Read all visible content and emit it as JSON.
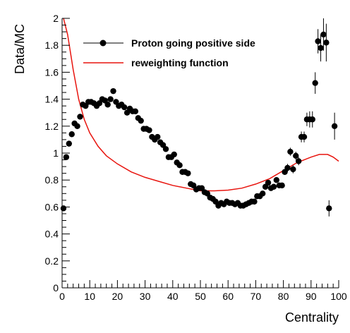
{
  "chart_data": {
    "type": "scatter",
    "title": "",
    "xlabel": "Centrality",
    "ylabel": "Data/MC",
    "xlim": [
      0,
      100
    ],
    "ylim": [
      0,
      2
    ],
    "xticks": [
      0,
      10,
      20,
      30,
      40,
      50,
      60,
      70,
      80,
      90,
      100
    ],
    "yticks": [
      0,
      0.2,
      0.4,
      0.6,
      0.8,
      1,
      1.2,
      1.4,
      1.6,
      1.8,
      2
    ],
    "xtick_labels": [
      "0",
      "10",
      "20",
      "30",
      "40",
      "50",
      "60",
      "70",
      "80",
      "90",
      "100"
    ],
    "ytick_labels": [
      "0",
      "0.2",
      "0.4",
      "0.6",
      "0.8",
      "1",
      "1.2",
      "1.4",
      "1.6",
      "1.8",
      "2"
    ],
    "grid": false,
    "legend_position": "top-left",
    "series": [
      {
        "name": "Proton going positive side",
        "kind": "markers-with-errors",
        "color": "#000000",
        "points": [
          [
            0.5,
            0.59,
            0.02
          ],
          [
            1.5,
            0.97,
            0.02
          ],
          [
            2.5,
            1.07,
            0.02
          ],
          [
            3.5,
            1.14,
            0.02
          ],
          [
            4.5,
            1.22,
            0.02
          ],
          [
            5.5,
            1.2,
            0.02
          ],
          [
            6.5,
            1.27,
            0.02
          ],
          [
            7.5,
            1.36,
            0.02
          ],
          [
            8.5,
            1.35,
            0.02
          ],
          [
            9.5,
            1.38,
            0.02
          ],
          [
            10.5,
            1.38,
            0.02
          ],
          [
            11.5,
            1.37,
            0.02
          ],
          [
            12.5,
            1.35,
            0.02
          ],
          [
            13.5,
            1.37,
            0.02
          ],
          [
            14.5,
            1.4,
            0.02
          ],
          [
            15.5,
            1.39,
            0.02
          ],
          [
            16.5,
            1.36,
            0.02
          ],
          [
            17.5,
            1.4,
            0.02
          ],
          [
            18.5,
            1.46,
            0.02
          ],
          [
            19.5,
            1.38,
            0.02
          ],
          [
            20.5,
            1.35,
            0.02
          ],
          [
            21.5,
            1.36,
            0.02
          ],
          [
            22.5,
            1.34,
            0.02
          ],
          [
            23.5,
            1.3,
            0.02
          ],
          [
            24.5,
            1.33,
            0.02
          ],
          [
            25.5,
            1.31,
            0.02
          ],
          [
            26.5,
            1.31,
            0.02
          ],
          [
            27.5,
            1.26,
            0.02
          ],
          [
            28.5,
            1.24,
            0.02
          ],
          [
            29.5,
            1.18,
            0.02
          ],
          [
            30.5,
            1.18,
            0.02
          ],
          [
            31.5,
            1.17,
            0.02
          ],
          [
            32.5,
            1.12,
            0.02
          ],
          [
            33.5,
            1.1,
            0.02
          ],
          [
            34.5,
            1.12,
            0.02
          ],
          [
            35.5,
            1.08,
            0.02
          ],
          [
            36.5,
            1.06,
            0.02
          ],
          [
            37.5,
            1.03,
            0.02
          ],
          [
            38.5,
            0.97,
            0.02
          ],
          [
            39.5,
            0.97,
            0.02
          ],
          [
            40.5,
            0.99,
            0.02
          ],
          [
            41.5,
            0.93,
            0.02
          ],
          [
            42.5,
            0.91,
            0.02
          ],
          [
            43.5,
            0.86,
            0.02
          ],
          [
            44.5,
            0.86,
            0.02
          ],
          [
            45.5,
            0.85,
            0.02
          ],
          [
            46.5,
            0.77,
            0.02
          ],
          [
            47.5,
            0.76,
            0.02
          ],
          [
            48.5,
            0.73,
            0.02
          ],
          [
            49.5,
            0.74,
            0.02
          ],
          [
            50.5,
            0.74,
            0.02
          ],
          [
            51.5,
            0.71,
            0.02
          ],
          [
            52.5,
            0.7,
            0.02
          ],
          [
            53.5,
            0.67,
            0.02
          ],
          [
            54.5,
            0.66,
            0.02
          ],
          [
            55.5,
            0.64,
            0.02
          ],
          [
            56.5,
            0.61,
            0.02
          ],
          [
            57.5,
            0.63,
            0.02
          ],
          [
            58.5,
            0.62,
            0.02
          ],
          [
            59.5,
            0.64,
            0.02
          ],
          [
            60.5,
            0.63,
            0.02
          ],
          [
            61.5,
            0.63,
            0.02
          ],
          [
            62.5,
            0.62,
            0.02
          ],
          [
            63.5,
            0.63,
            0.02
          ],
          [
            64.5,
            0.61,
            0.02
          ],
          [
            65.5,
            0.61,
            0.02
          ],
          [
            66.5,
            0.62,
            0.02
          ],
          [
            67.5,
            0.63,
            0.02
          ],
          [
            68.5,
            0.64,
            0.02
          ],
          [
            69.5,
            0.64,
            0.02
          ],
          [
            70.5,
            0.68,
            0.02
          ],
          [
            71.5,
            0.68,
            0.02
          ],
          [
            72.5,
            0.7,
            0.02
          ],
          [
            73.5,
            0.75,
            0.02
          ],
          [
            74.5,
            0.78,
            0.02
          ],
          [
            75.5,
            0.74,
            0.02
          ],
          [
            76.5,
            0.75,
            0.02
          ],
          [
            77.5,
            0.8,
            0.02
          ],
          [
            78.5,
            0.76,
            0.02
          ],
          [
            79.5,
            0.76,
            0.02
          ],
          [
            80.5,
            0.86,
            0.02
          ],
          [
            81.5,
            0.89,
            0.03
          ],
          [
            82.5,
            1.01,
            0.03
          ],
          [
            83.5,
            0.88,
            0.03
          ],
          [
            84.5,
            0.98,
            0.03
          ],
          [
            85.5,
            0.94,
            0.03
          ],
          [
            86.5,
            1.12,
            0.04
          ],
          [
            87.5,
            1.12,
            0.04
          ],
          [
            88.5,
            1.25,
            0.05
          ],
          [
            89.5,
            1.25,
            0.06
          ],
          [
            90.5,
            1.25,
            0.06
          ],
          [
            91.5,
            1.52,
            0.08
          ],
          [
            92.5,
            1.83,
            0.09
          ],
          [
            93.5,
            1.78,
            0.1
          ],
          [
            94.5,
            1.88,
            0.12
          ],
          [
            95.5,
            1.82,
            0.14
          ],
          [
            96.5,
            0.59,
            0.06
          ],
          [
            98.5,
            1.2,
            0.1
          ]
        ]
      },
      {
        "name": "reweighting function",
        "kind": "line",
        "color": "#e8140e",
        "points": [
          [
            0.5,
            2.05
          ],
          [
            2,
            1.88
          ],
          [
            4,
            1.62
          ],
          [
            6,
            1.4
          ],
          [
            8,
            1.25
          ],
          [
            10,
            1.15
          ],
          [
            13,
            1.05
          ],
          [
            16,
            0.98
          ],
          [
            20,
            0.92
          ],
          [
            25,
            0.86
          ],
          [
            30,
            0.82
          ],
          [
            35,
            0.79
          ],
          [
            40,
            0.76
          ],
          [
            45,
            0.74
          ],
          [
            50,
            0.72
          ],
          [
            55,
            0.72
          ],
          [
            60,
            0.725
          ],
          [
            65,
            0.74
          ],
          [
            70,
            0.77
          ],
          [
            75,
            0.81
          ],
          [
            80,
            0.87
          ],
          [
            85,
            0.93
          ],
          [
            90,
            0.97
          ],
          [
            93,
            0.99
          ],
          [
            96,
            0.99
          ],
          [
            98,
            0.97
          ],
          [
            100,
            0.94
          ]
        ]
      }
    ]
  }
}
